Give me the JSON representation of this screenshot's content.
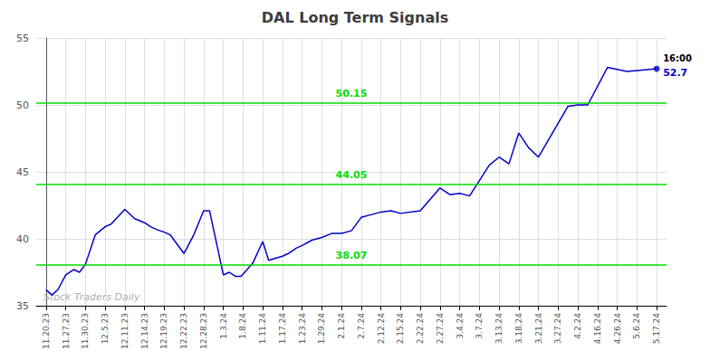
{
  "chart_data": {
    "type": "line",
    "title": "DAL Long Term Signals",
    "x": [
      0.0,
      0.3,
      0.6,
      1.0,
      1.4,
      1.7,
      2.0,
      2.5,
      3.0,
      3.3,
      4.0,
      4.5,
      5.0,
      5.3,
      5.6,
      6.0,
      6.3,
      7.0,
      7.5,
      8.0,
      8.3,
      9.0,
      9.3,
      9.6,
      9.9,
      10.5,
      11.0,
      11.3,
      12.0,
      12.3,
      12.7,
      13.0,
      13.5,
      14.0,
      14.5,
      15.0,
      15.5,
      16.0,
      16.5,
      17.0,
      17.5,
      18.0,
      19.0,
      20.0,
      20.5,
      21.0,
      21.5,
      22.5,
      23.0,
      23.5,
      24.0,
      24.5,
      25.0,
      26.5,
      27.0,
      27.5,
      28.5,
      29.5,
      31.0
    ],
    "values": [
      36.2,
      35.8,
      36.2,
      37.3,
      37.7,
      37.5,
      38.1,
      40.3,
      40.9,
      41.1,
      42.2,
      41.5,
      41.2,
      40.9,
      40.7,
      40.5,
      40.3,
      38.9,
      40.3,
      42.1,
      42.1,
      37.3,
      37.5,
      37.2,
      37.2,
      38.2,
      39.8,
      38.4,
      38.7,
      38.9,
      39.3,
      39.5,
      39.9,
      40.1,
      40.4,
      40.4,
      40.6,
      41.6,
      41.8,
      42.0,
      42.1,
      41.9,
      42.1,
      43.8,
      43.3,
      43.4,
      43.2,
      45.5,
      46.1,
      45.6,
      47.9,
      46.8,
      46.1,
      49.9,
      50.0,
      50.0,
      52.8,
      52.5,
      52.7
    ],
    "color": "#0000cc",
    "xlim": [
      -0.5,
      31.5
    ],
    "xticks": [
      {
        "value": 0,
        "label": "11.20.23"
      },
      {
        "value": 1,
        "label": "11.27.23"
      },
      {
        "value": 2,
        "label": "11.30.23"
      },
      {
        "value": 3,
        "label": "12.5.23"
      },
      {
        "value": 4,
        "label": "12.11.23"
      },
      {
        "value": 5,
        "label": "12.14.23"
      },
      {
        "value": 6,
        "label": "12.19.23"
      },
      {
        "value": 7,
        "label": "12.22.23"
      },
      {
        "value": 8,
        "label": "12.28.23"
      },
      {
        "value": 9,
        "label": "1.3.24"
      },
      {
        "value": 10,
        "label": "1.8.24"
      },
      {
        "value": 11,
        "label": "1.11.24"
      },
      {
        "value": 12,
        "label": "1.17.24"
      },
      {
        "value": 13,
        "label": "1.23.24"
      },
      {
        "value": 14,
        "label": "1.29.24"
      },
      {
        "value": 15,
        "label": "2.1.24"
      },
      {
        "value": 16,
        "label": "2.7.24"
      },
      {
        "value": 17,
        "label": "2.12.24"
      },
      {
        "value": 18,
        "label": "2.15.24"
      },
      {
        "value": 19,
        "label": "2.22.24"
      },
      {
        "value": 20,
        "label": "2.27.24"
      },
      {
        "value": 21,
        "label": "3.4.24"
      },
      {
        "value": 22,
        "label": "3.7.24"
      },
      {
        "value": 23,
        "label": "3.13.24"
      },
      {
        "value": 24,
        "label": "3.18.24"
      },
      {
        "value": 25,
        "label": "3.21.24"
      },
      {
        "value": 26,
        "label": "3.27.24"
      },
      {
        "value": 27,
        "label": "4.2.24"
      },
      {
        "value": 28,
        "label": "4.16.24"
      },
      {
        "value": 29,
        "label": "4.26.24"
      },
      {
        "value": 30,
        "label": "5.6.24"
      },
      {
        "value": 31,
        "label": "5.17.24"
      }
    ],
    "ylim": [
      35,
      55
    ],
    "yticks": [
      35,
      40,
      45,
      50,
      55
    ],
    "grid": true,
    "hlines": [
      38.07,
      44.05,
      50.15
    ],
    "hline_labels": [
      "38.07",
      "44.05",
      "50.15"
    ],
    "hline_color": "#00dd00",
    "last_time": "16:00",
    "last_price": "52.7",
    "watermark": "Stock Traders Daily",
    "watermark_color": "#b0b0b0"
  }
}
